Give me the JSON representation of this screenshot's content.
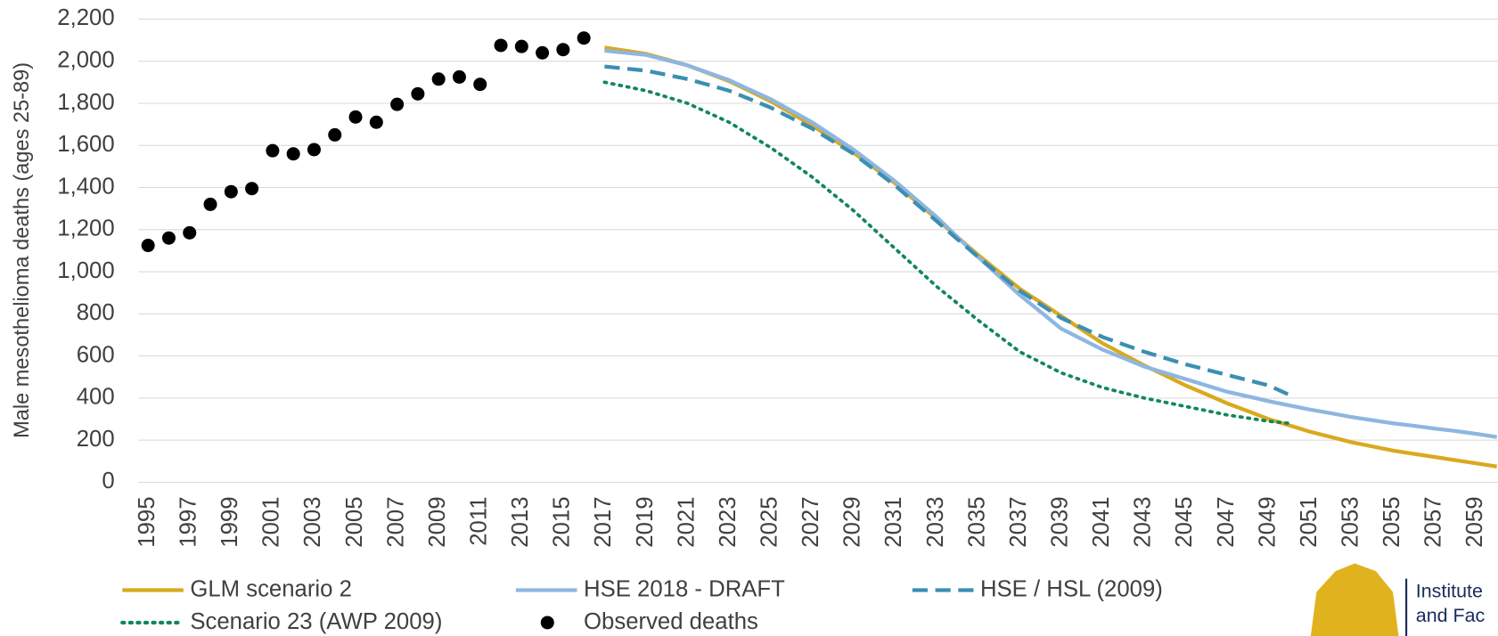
{
  "chart_data": {
    "type": "line",
    "y_label": "Male mesothelioma deaths (ages 25-89)",
    "categories": [
      "1995",
      null,
      "1997",
      null,
      "1999",
      null,
      "2001",
      null,
      "2003",
      null,
      "2005",
      null,
      "2007",
      null,
      "2009",
      null,
      "2011",
      null,
      "2013",
      null,
      "2015",
      null,
      "2017",
      null,
      "2019",
      null,
      "2021",
      null,
      "2023",
      null,
      "2025",
      null,
      "2027",
      null,
      "2029",
      null,
      "2031",
      null,
      "2033",
      null,
      "2035",
      null,
      "2037",
      null,
      "2039",
      null,
      "2041",
      null,
      "2043",
      null,
      "2045",
      null,
      "2047",
      null,
      "2049",
      null,
      "2051",
      null,
      "2053",
      null,
      "2055",
      null,
      "2057",
      null,
      "2059",
      null
    ],
    "ylim": [
      0,
      2200
    ],
    "yticks": [
      0,
      200,
      400,
      600,
      800,
      {
        "value": 1000,
        "label": "1,000"
      },
      {
        "value": 1200,
        "label": "1,200"
      },
      {
        "value": 1400,
        "label": "1,400"
      },
      {
        "value": 1600,
        "label": "1,600"
      },
      {
        "value": 1800,
        "label": "1,800"
      },
      {
        "value": 2000,
        "label": "2,000"
      },
      {
        "value": 2200,
        "label": "2,200"
      }
    ],
    "grid": true,
    "series": [
      {
        "name": "GLM scenario 2",
        "color": "#d9a91f",
        "style": "solid",
        "values": [
          null,
          null,
          null,
          null,
          null,
          null,
          null,
          null,
          null,
          null,
          null,
          null,
          null,
          null,
          null,
          null,
          null,
          null,
          null,
          null,
          null,
          null,
          2065,
          2050,
          2035,
          2008,
          1980,
          1943,
          1905,
          1858,
          1810,
          1753,
          1695,
          1630,
          1565,
          1493,
          1420,
          1335,
          1250,
          1165,
          1080,
          1000,
          920,
          855,
          790,
          725,
          660,
          608,
          555,
          508,
          460,
          418,
          375,
          338,
          300,
          270,
          240,
          215,
          190,
          170,
          150,
          135,
          120,
          105,
          90,
          75
        ]
      },
      {
        "name": "HSE 2018 - DRAFT",
        "color": "#8eb6e0",
        "style": "solid",
        "values": [
          null,
          null,
          null,
          null,
          null,
          null,
          null,
          null,
          null,
          null,
          null,
          null,
          null,
          null,
          null,
          null,
          null,
          null,
          null,
          null,
          null,
          null,
          2050,
          2040,
          2030,
          2005,
          1980,
          1945,
          1910,
          1865,
          1820,
          1765,
          1710,
          1645,
          1580,
          1505,
          1430,
          1345,
          1260,
          1165,
          1070,
          980,
          890,
          810,
          730,
          680,
          630,
          590,
          550,
          520,
          490,
          460,
          430,
          408,
          385,
          365,
          345,
          328,
          310,
          295,
          280,
          268,
          255,
          243,
          230,
          215
        ]
      },
      {
        "name": "HSE / HSL (2009)",
        "color": "#3b8fb2",
        "style": "dashed",
        "values": [
          null,
          null,
          null,
          null,
          null,
          null,
          null,
          null,
          null,
          null,
          null,
          null,
          null,
          null,
          null,
          null,
          null,
          null,
          null,
          null,
          null,
          null,
          1975,
          1965,
          1955,
          1935,
          1915,
          1888,
          1860,
          1820,
          1780,
          1730,
          1680,
          1620,
          1560,
          1485,
          1410,
          1325,
          1240,
          1155,
          1070,
          990,
          910,
          845,
          780,
          735,
          690,
          655,
          620,
          590,
          560,
          535,
          510,
          485,
          460,
          415,
          null,
          null,
          null,
          null,
          null,
          null,
          null,
          null,
          null,
          null
        ]
      },
      {
        "name": "Scenario 23 (AWP 2009)",
        "color": "#13875a",
        "style": "dotted",
        "values": [
          null,
          null,
          null,
          null,
          null,
          null,
          null,
          null,
          null,
          null,
          null,
          null,
          null,
          null,
          null,
          null,
          null,
          null,
          null,
          null,
          null,
          null,
          1900,
          1880,
          1860,
          1830,
          1800,
          1755,
          1710,
          1650,
          1590,
          1520,
          1450,
          1370,
          1290,
          1200,
          1110,
          1020,
          930,
          850,
          770,
          695,
          620,
          570,
          520,
          485,
          450,
          425,
          400,
          380,
          360,
          340,
          320,
          305,
          290,
          280,
          null,
          null,
          null,
          null,
          null,
          null,
          null,
          null,
          null,
          null
        ]
      },
      {
        "name": "Observed deaths",
        "color": "#000000",
        "style": "markers",
        "values": [
          1125,
          1160,
          1185,
          1320,
          1380,
          1395,
          1575,
          1560,
          1580,
          1650,
          1735,
          1710,
          1795,
          1845,
          1915,
          1925,
          1890,
          2075,
          2070,
          2040,
          2055,
          2110,
          null,
          null,
          null,
          null,
          null,
          null,
          null,
          null,
          null,
          null,
          null,
          null,
          null,
          null,
          null,
          null,
          null,
          null,
          null,
          null,
          null,
          null,
          null,
          null,
          null,
          null,
          null,
          null,
          null,
          null,
          null,
          null,
          null,
          null,
          null,
          null,
          null,
          null,
          null,
          null,
          null,
          null,
          null,
          null
        ]
      }
    ]
  },
  "logo": {
    "lines": [
      "Institute",
      "and Fac"
    ]
  }
}
